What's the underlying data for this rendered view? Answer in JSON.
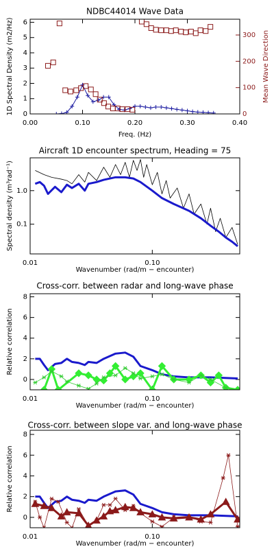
{
  "chart_data": [
    {
      "type": "line",
      "title": "NDBC44014 Wave Data",
      "xlabel": "Freq. (Hz)",
      "ylabel": "1D Spectral Density (m2/Hz)",
      "y2label": "Mean Wave Direction",
      "y2color": "#8b1a1a",
      "xlim": [
        0,
        0.4
      ],
      "xticks": [
        {
          "value": 0,
          "label": "0.00"
        },
        {
          "value": 0.1,
          "label": "0.10"
        },
        {
          "value": 0.2,
          "label": "0.20"
        },
        {
          "value": 0.3,
          "label": "0.30"
        },
        {
          "value": 0.4,
          "label": "0.40"
        }
      ],
      "ylim": [
        0,
        6.2
      ],
      "yticks": [
        0,
        1,
        2,
        3,
        4,
        5,
        6
      ],
      "y2lim": [
        0,
        360
      ],
      "y2ticks": [
        0,
        100,
        200,
        300
      ],
      "series": [
        {
          "color": "#1a1aa0",
          "width": 1,
          "marker": "plus",
          "line": true,
          "x": [
            0.05,
            0.06,
            0.07,
            0.08,
            0.09,
            0.1,
            0.11,
            0.12,
            0.13,
            0.14,
            0.15,
            0.16,
            0.17,
            0.18,
            0.19,
            0.2,
            0.21,
            0.22,
            0.23,
            0.24,
            0.25,
            0.26,
            0.27,
            0.28,
            0.29,
            0.3,
            0.31,
            0.32,
            0.33,
            0.34,
            0.35
          ],
          "values": [
            0,
            0.02,
            0.1,
            0.5,
            1.1,
            1.9,
            1.2,
            0.8,
            0.9,
            1.1,
            1.1,
            0.6,
            0.3,
            0.25,
            0.35,
            0.5,
            0.5,
            0.45,
            0.4,
            0.45,
            0.45,
            0.4,
            0.35,
            0.3,
            0.25,
            0.2,
            0.15,
            0.12,
            0.1,
            0.08,
            0.06
          ]
        },
        {
          "color": "#8b1a1a",
          "width": 1,
          "marker": "square",
          "line": false,
          "axis": "y2",
          "x": [
            0.034,
            0.044,
            0.056,
            0.067,
            0.077,
            0.088,
            0.097,
            0.106,
            0.116,
            0.125,
            0.133,
            0.141,
            0.149,
            0.158,
            0.167,
            0.176,
            0.186,
            0.195,
            0.213,
            0.222,
            0.231,
            0.24,
            0.25,
            0.26,
            0.269,
            0.278,
            0.288,
            0.297,
            0.307,
            0.316,
            0.325,
            0.335,
            0.344
          ],
          "values": [
            183,
            196,
            344,
            90,
            85,
            90,
            98,
            106,
            93,
            75,
            54,
            41,
            28,
            21,
            21,
            18,
            18,
            16,
            351,
            341,
            326,
            320,
            318,
            318,
            315,
            318,
            313,
            310,
            313,
            307,
            318,
            315,
            331
          ]
        }
      ]
    },
    {
      "type": "line",
      "title": "Aircraft 1D encounter spectrum, Heading = 75",
      "xlabel": "Wavenumber (rad/m − encounter)",
      "ylabel": "Spectral density (m³rad⁻¹)",
      "xscale": "log",
      "yscale": "log",
      "xlim": [
        0.01,
        0.52
      ],
      "xticks": [
        0.01,
        {
          "value": 0.1,
          "label": "0.10"
        }
      ],
      "ylim": [
        0.013,
        9.5
      ],
      "yticks": [
        {
          "value": 1,
          "label": "1.0"
        },
        0.1
      ],
      "series": [
        {
          "color": "#000000",
          "width": 0.8,
          "line": true,
          "x": [
            0.011,
            0.013,
            0.015,
            0.018,
            0.02,
            0.022,
            0.025,
            0.028,
            0.03,
            0.035,
            0.04,
            0.045,
            0.05,
            0.055,
            0.06,
            0.065,
            0.07,
            0.075,
            0.08,
            0.085,
            0.09,
            0.1,
            0.11,
            0.12,
            0.13,
            0.14,
            0.16,
            0.18,
            0.2,
            0.22,
            0.25,
            0.28,
            0.3,
            0.33,
            0.36,
            0.4,
            0.45,
            0.5
          ],
          "values": [
            4.0,
            3.0,
            2.5,
            2.2,
            2.0,
            1.6,
            3.0,
            1.8,
            3.5,
            2.0,
            5.0,
            2.5,
            6.0,
            3.0,
            7.0,
            2.5,
            8.0,
            4.0,
            8.5,
            2.5,
            6.0,
            1.5,
            3.5,
            0.8,
            2.0,
            0.6,
            1.2,
            0.3,
            0.8,
            0.2,
            0.4,
            0.1,
            0.3,
            0.06,
            0.15,
            0.04,
            0.08,
            0.025
          ]
        },
        {
          "color": "#1a1acc",
          "width": 3,
          "line": true,
          "x": [
            0.011,
            0.012,
            0.013,
            0.014,
            0.016,
            0.018,
            0.02,
            0.022,
            0.025,
            0.028,
            0.03,
            0.035,
            0.04,
            0.05,
            0.06,
            0.07,
            0.08,
            0.1,
            0.12,
            0.15,
            0.2,
            0.25,
            0.3,
            0.35,
            0.4,
            0.45,
            0.5
          ],
          "values": [
            1.6,
            1.8,
            1.4,
            0.8,
            1.3,
            0.9,
            1.5,
            1.2,
            1.6,
            1.0,
            1.6,
            1.8,
            2.1,
            2.5,
            2.5,
            2.3,
            1.8,
            1.0,
            0.6,
            0.4,
            0.25,
            0.15,
            0.09,
            0.06,
            0.04,
            0.03,
            0.022
          ]
        }
      ]
    },
    {
      "type": "line",
      "title": "Cross-corr. between radar and long-wave phase",
      "xlabel": "Wavenumber (rad/m − encounter)",
      "ylabel": "Relative correlation",
      "xscale": "log",
      "xlim": [
        0.01,
        0.52
      ],
      "xticks": [
        0.01,
        {
          "value": 0.1,
          "label": "0.10"
        }
      ],
      "ylim": [
        -1,
        8.3
      ],
      "yticks": [
        0,
        2,
        4,
        6,
        8
      ],
      "series": [
        {
          "color": "#1a1acc",
          "width": 3,
          "line": true,
          "x": [
            0.011,
            0.012,
            0.013,
            0.014,
            0.016,
            0.018,
            0.02,
            0.022,
            0.025,
            0.028,
            0.03,
            0.035,
            0.04,
            0.05,
            0.06,
            0.07,
            0.08,
            0.1,
            0.12,
            0.15,
            0.2,
            0.3,
            0.5
          ],
          "values": [
            2.0,
            2.0,
            1.4,
            0.9,
            1.5,
            1.6,
            2.0,
            1.7,
            1.6,
            1.4,
            1.7,
            1.6,
            2.0,
            2.5,
            2.6,
            2.2,
            1.3,
            0.9,
            0.5,
            0.3,
            0.2,
            0.2,
            0.1
          ]
        },
        {
          "color": "#33ee33",
          "width": 3,
          "marker": "diamond",
          "line": true,
          "x": [
            0.013,
            0.015,
            0.017,
            0.025,
            0.03,
            0.035,
            0.04,
            0.045,
            0.05,
            0.06,
            0.07,
            0.08,
            0.1,
            0.12,
            0.15,
            0.2,
            0.25,
            0.3,
            0.35,
            0.4,
            0.5
          ],
          "values": [
            -1.0,
            1.0,
            -1.0,
            0.6,
            0.4,
            0.0,
            -0.1,
            0.6,
            1.3,
            0.0,
            0.3,
            0.6,
            -1.0,
            1.3,
            0.0,
            0.0,
            0.4,
            -0.3,
            0.4,
            -0.8,
            -1.0
          ]
        },
        {
          "color": "#33cc33",
          "width": 0.8,
          "marker": "star",
          "line": true,
          "x": [
            0.011,
            0.013,
            0.015,
            0.018,
            0.02,
            0.025,
            0.03,
            0.035,
            0.04,
            0.05,
            0.06,
            0.07,
            0.08,
            0.1,
            0.12,
            0.15,
            0.2,
            0.25,
            0.3,
            0.4,
            0.5
          ],
          "values": [
            -0.3,
            0.2,
            0.8,
            0.3,
            -0.2,
            -0.6,
            -0.9,
            -0.4,
            0.2,
            0.4,
            1.1,
            0.6,
            0.1,
            0.3,
            0.5,
            0.0,
            -0.3,
            0.4,
            0.0,
            -0.8,
            -1.0
          ]
        }
      ]
    },
    {
      "type": "line",
      "title": "Cross-corr. between slope var. and long-wave phase",
      "xlabel": "Wavenumber (rad/m − encounter)",
      "ylabel": "Relative correlation",
      "xscale": "log",
      "xlim": [
        0.01,
        0.52
      ],
      "xticks": [
        0.01,
        {
          "value": 0.1,
          "label": "0.10"
        }
      ],
      "ylim": [
        -1,
        8.4
      ],
      "yticks": [
        0,
        2,
        4,
        6,
        8
      ],
      "series": [
        {
          "color": "#1a1acc",
          "width": 3,
          "line": true,
          "x": [
            0.011,
            0.012,
            0.013,
            0.014,
            0.016,
            0.018,
            0.02,
            0.022,
            0.025,
            0.028,
            0.03,
            0.035,
            0.04,
            0.05,
            0.06,
            0.07,
            0.08,
            0.1,
            0.12,
            0.15,
            0.2,
            0.3,
            0.5
          ],
          "values": [
            2.0,
            2.0,
            1.4,
            0.9,
            1.5,
            1.6,
            2.0,
            1.7,
            1.6,
            1.4,
            1.7,
            1.6,
            2.0,
            2.5,
            2.6,
            2.2,
            1.3,
            0.9,
            0.5,
            0.3,
            0.2,
            0.2,
            0.1
          ]
        },
        {
          "color": "#8b1a1a",
          "width": 3,
          "marker": "triangle",
          "line": true,
          "x": [
            0.011,
            0.013,
            0.015,
            0.018,
            0.02,
            0.025,
            0.03,
            0.035,
            0.04,
            0.045,
            0.05,
            0.06,
            0.07,
            0.08,
            0.1,
            0.12,
            0.15,
            0.2,
            0.25,
            0.3,
            0.4,
            0.5
          ],
          "values": [
            1.3,
            1.1,
            0.9,
            0.1,
            0.5,
            0.4,
            -0.8,
            -0.3,
            0.1,
            0.6,
            0.7,
            1.0,
            0.9,
            0.5,
            0.3,
            0.0,
            -0.1,
            0.0,
            -0.2,
            0.3,
            1.5,
            -0.2
          ]
        },
        {
          "color": "#8b1a1a",
          "width": 0.8,
          "marker": "star",
          "line": true,
          "x": [
            0.011,
            0.012,
            0.013,
            0.015,
            0.017,
            0.02,
            0.022,
            0.025,
            0.03,
            0.035,
            0.04,
            0.045,
            0.05,
            0.06,
            0.07,
            0.08,
            0.1,
            0.12,
            0.15,
            0.2,
            0.25,
            0.3,
            0.38,
            0.42,
            0.5
          ],
          "values": [
            1.5,
            0.0,
            -1.0,
            1.8,
            1.5,
            -0.5,
            -1.0,
            0.8,
            -0.8,
            -0.3,
            1.2,
            1.2,
            1.8,
            0.7,
            1.1,
            0.4,
            -0.4,
            -0.9,
            0.0,
            0.1,
            -0.4,
            -0.5,
            3.8,
            6.0,
            -0.9
          ]
        }
      ]
    }
  ]
}
